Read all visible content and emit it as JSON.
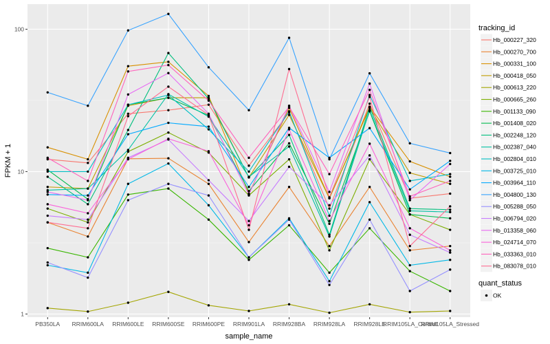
{
  "chart_data": {
    "type": "line",
    "xlabel": "sample_name",
    "ylabel": "FPKM + 1",
    "y_scale": "log10",
    "ylim": [
      0.95,
      150
    ],
    "y_ticks": [
      1,
      10,
      100
    ],
    "y_tick_labels": [
      "1",
      "10",
      "100"
    ],
    "grid": true,
    "legend_placement": "right",
    "categories": [
      "PB350LA",
      "RRIM600LA",
      "RRIM600LE",
      "RRIM600SE",
      "RRIM600PE",
      "RRIM901LA",
      "RRIM928BA",
      "RRIM928LA",
      "RRIM928LE",
      "RRIM105LA_Control",
      "RRIM105LA_Stressed"
    ],
    "legend": {
      "title": "tracking_id",
      "shape_title": "quant_status",
      "shape_entry": "OK"
    },
    "series": [
      {
        "name": "Hb_000227_320",
        "color": "#F8766D",
        "values": [
          12.2,
          11.5,
          25.5,
          27,
          29.5,
          11,
          26,
          5.5,
          30,
          6.5,
          7
        ]
      },
      {
        "name": "Hb_000270_700",
        "color": "#EA8331",
        "values": [
          4.4,
          3.5,
          12.3,
          12.4,
          8.2,
          3.2,
          7.8,
          3.0,
          7.8,
          2.8,
          3.0
        ]
      },
      {
        "name": "Hb_000331_100",
        "color": "#D89000",
        "values": [
          14.8,
          12.2,
          55,
          59,
          34,
          7,
          28,
          6.5,
          28.5,
          11.8,
          9.2
        ]
      },
      {
        "name": "Hb_000418_050",
        "color": "#C09B00",
        "values": [
          7.8,
          7.6,
          29,
          33,
          33,
          9.1,
          25,
          6.5,
          28,
          9.8,
          8.2
        ]
      },
      {
        "name": "Hb_000613_220",
        "color": "#A3A500",
        "values": [
          1.1,
          1.04,
          1.2,
          1.43,
          1.15,
          1.05,
          1.17,
          1.02,
          1.17,
          1.03,
          1.05
        ]
      },
      {
        "name": "Hb_000665_260",
        "color": "#7CAE00",
        "values": [
          5.5,
          4.4,
          13.8,
          18.8,
          13.6,
          6.8,
          12.2,
          2.8,
          12.2,
          5.0,
          3.9
        ]
      },
      {
        "name": "Hb_001133_090",
        "color": "#39B600",
        "values": [
          2.9,
          2.5,
          6.9,
          7.6,
          4.6,
          2.4,
          4.2,
          1.95,
          4.0,
          2.0,
          1.45
        ]
      },
      {
        "name": "Hb_001408_020",
        "color": "#00BB4E",
        "values": [
          10.3,
          6.4,
          29.5,
          33,
          24.8,
          7.3,
          15.8,
          4.3,
          26.5,
          5.0,
          4.7
        ]
      },
      {
        "name": "Hb_002248_120",
        "color": "#00BF7D",
        "values": [
          9.2,
          5.9,
          19.6,
          68,
          32.5,
          9.1,
          18.1,
          3.6,
          28.5,
          5.5,
          5.4
        ]
      },
      {
        "name": "Hb_002387_040",
        "color": "#00C1A3",
        "values": [
          7.4,
          7.6,
          14.2,
          35,
          24.3,
          9.2,
          15.0,
          3.5,
          27.0,
          5.3,
          5.2
        ]
      },
      {
        "name": "Hb_002804_010",
        "color": "#00BFC4",
        "values": [
          10.0,
          10.0,
          29.5,
          34.5,
          19.8,
          10.0,
          26.5,
          4.9,
          34.5,
          8.6,
          9.6
        ]
      },
      {
        "name": "Hb_003725_010",
        "color": "#00B8E7",
        "values": [
          2.2,
          1.95,
          8.2,
          11.4,
          5.8,
          2.5,
          4.7,
          1.7,
          6.1,
          2.2,
          2.4
        ]
      },
      {
        "name": "Hb_003964_110",
        "color": "#00A9FF",
        "values": [
          6.9,
          6.8,
          18.3,
          22.0,
          20.7,
          7.8,
          20.3,
          12.5,
          20.2,
          7.5,
          11.9
        ]
      },
      {
        "name": "Hb_004800_130",
        "color": "#35A2FF",
        "values": [
          36,
          29,
          98,
          128,
          54,
          27,
          87,
          12.2,
          49,
          15.8,
          13.5
        ]
      },
      {
        "name": "Hb_005288_050",
        "color": "#9590FF",
        "values": [
          2.3,
          1.8,
          6.3,
          8.2,
          6.8,
          2.5,
          4.6,
          1.6,
          4.6,
          1.45,
          2.05
        ]
      },
      {
        "name": "Hb_006794_020",
        "color": "#C77CFF",
        "values": [
          4.9,
          4.6,
          12.5,
          16.8,
          8.7,
          4.5,
          10.8,
          5.8,
          13.0,
          3.6,
          2.7
        ]
      },
      {
        "name": "Hb_013358_060",
        "color": "#E76BF3",
        "values": [
          7.2,
          6.3,
          34.8,
          49.2,
          25.5,
          6.9,
          29.0,
          7.2,
          41.5,
          6.3,
          11.3
        ]
      },
      {
        "name": "Hb_024714_070",
        "color": "#FA62DB",
        "values": [
          5.9,
          5.1,
          12.2,
          17.0,
          13.9,
          4.2,
          19.8,
          4.5,
          15.7,
          4.0,
          2.8
        ]
      },
      {
        "name": "Hb_033363_010",
        "color": "#FF62BC",
        "values": [
          12.5,
          8.6,
          50.5,
          56,
          31.5,
          12.5,
          28.5,
          9.6,
          37.5,
          6.7,
          8.6
        ]
      },
      {
        "name": "Hb_083078_010",
        "color": "#FF6C91",
        "values": [
          4.4,
          4.0,
          24.5,
          39.5,
          25.0,
          3.9,
          52.5,
          6.6,
          33.5,
          3.0,
          5.7
        ]
      }
    ]
  }
}
